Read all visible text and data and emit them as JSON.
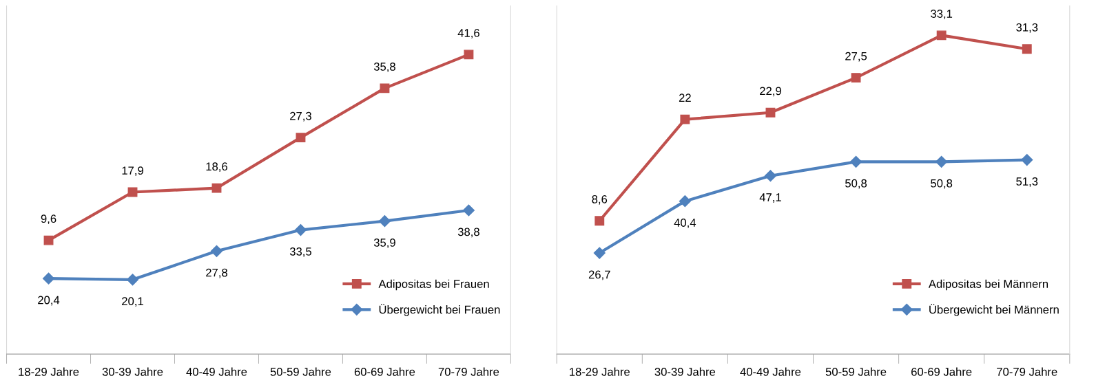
{
  "chart_data": [
    {
      "type": "line",
      "categories": [
        "18-29 Jahre",
        "30-39 Jahre",
        "40-49 Jahre",
        "50-59 Jahre",
        "60-69 Jahre",
        "70-79 Jahre"
      ],
      "series": [
        {
          "name": "Adipositas bei Frauen",
          "color": "#c0504d",
          "marker": "square",
          "axis": "y2",
          "values": [
            9.6,
            17.9,
            18.6,
            27.3,
            35.8,
            41.6
          ],
          "value_labels": [
            "9,6",
            "17,9",
            "18,6",
            "27,3",
            "35,8",
            "41,6"
          ]
        },
        {
          "name": "Übergewicht bei Frauen",
          "color": "#4f81bd",
          "marker": "diamond",
          "values": [
            20.4,
            20.1,
            27.8,
            33.5,
            35.9,
            38.8
          ],
          "value_labels": [
            "20,4",
            "20,1",
            "27,8",
            "33,5",
            "35,9",
            "38,8"
          ]
        }
      ],
      "ylim": [
        0,
        94
      ],
      "y2lim": [
        -10,
        50
      ],
      "tick_labels": "x",
      "legend": "bottom right",
      "grid": false
    },
    {
      "type": "line",
      "categories": [
        "18-29 Jahre",
        "30-39 Jahre",
        "40-49 Jahre",
        "50-59 Jahre",
        "60-69 Jahre",
        "70-79 Jahre"
      ],
      "series": [
        {
          "name": "Adipositas bei Männern",
          "color": "#c0504d",
          "marker": "square",
          "axis": "y2",
          "values": [
            8.6,
            22,
            22.9,
            27.5,
            33.1,
            31.3
          ],
          "value_labels": [
            "8,6",
            "22",
            "22,9",
            "27,5",
            "33,1",
            "31,3"
          ]
        },
        {
          "name": "Übergewicht bei Männern",
          "color": "#4f81bd",
          "marker": "diamond",
          "values": [
            26.7,
            40.4,
            47.1,
            50.8,
            50.8,
            51.3
          ],
          "value_labels": [
            "26,7",
            "40,4",
            "47,1",
            "50,8",
            "50,8",
            "51,3"
          ]
        }
      ],
      "ylim": [
        0,
        92
      ],
      "y2lim": [
        -9,
        37
      ],
      "tick_labels": "x",
      "legend": "bottom right",
      "grid": false
    }
  ]
}
